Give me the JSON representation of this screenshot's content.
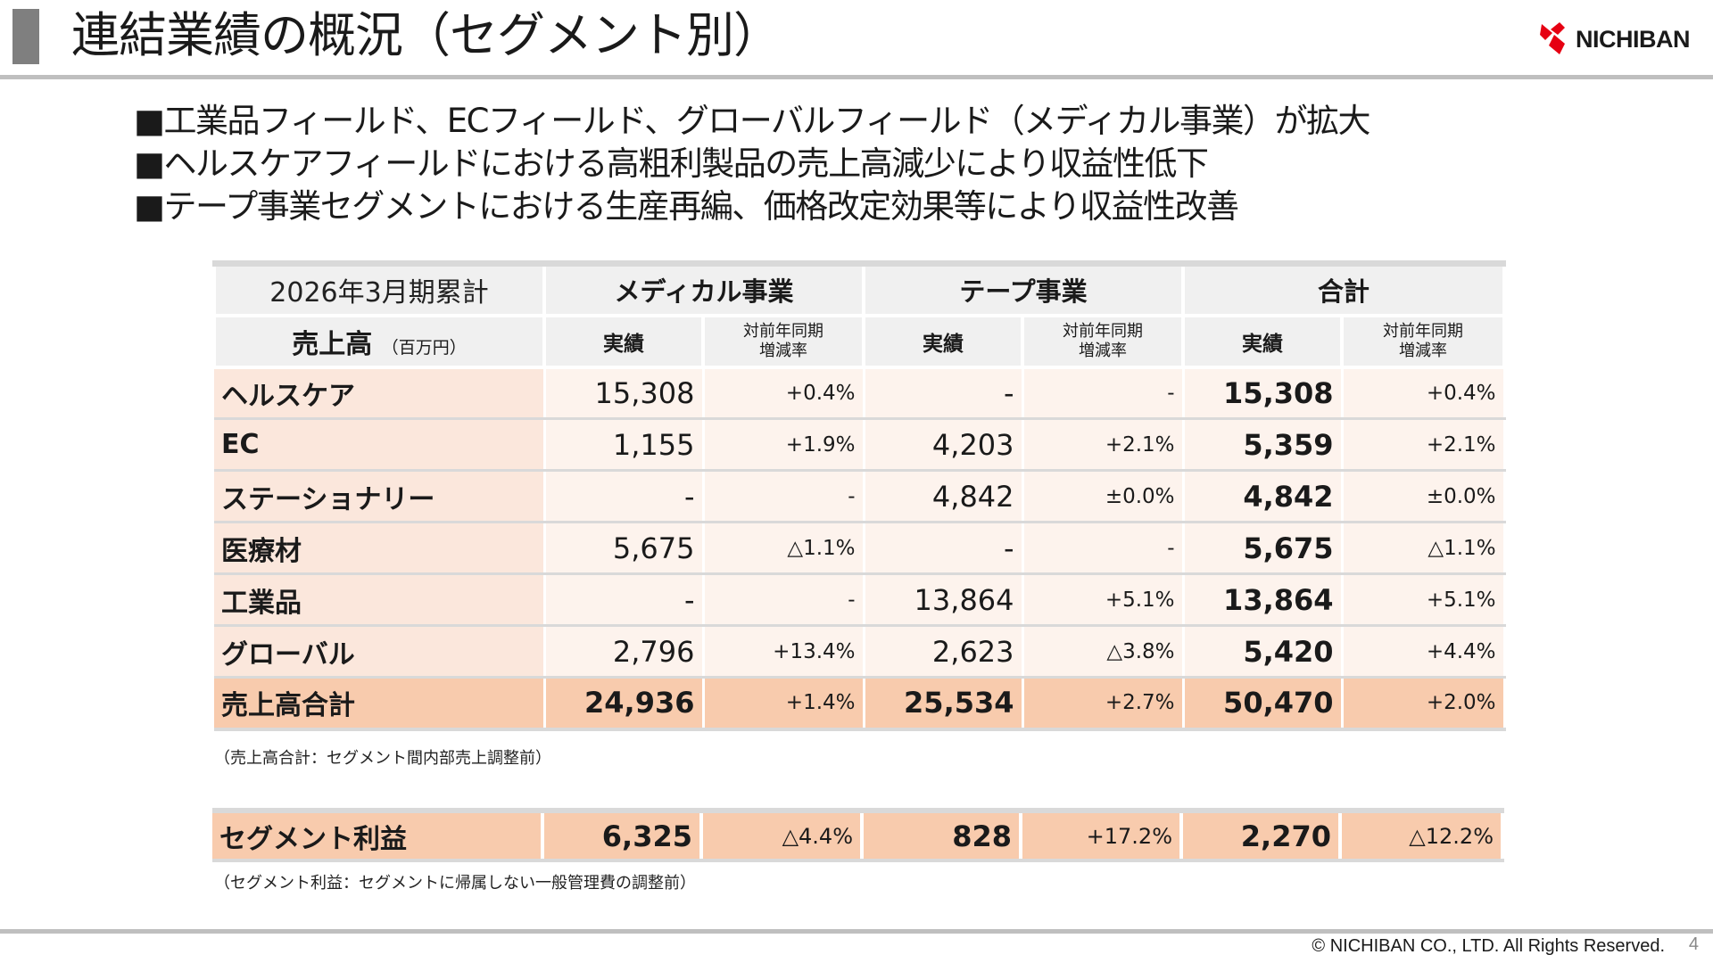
{
  "header": {
    "title": "連結業績の概況（セグメント別）",
    "logo_text": "NICHIBAN",
    "logo_color": "#e60012"
  },
  "bullets": [
    "■工業品フィールド、ECフィールド、グローバルフィールド（メディカル事業）が拡大",
    "■ヘルスケアフィールドにおける高粗利製品の売上高減少により収益性低下",
    "■テープ事業セグメントにおける生産再編、価格改定効果等により収益性改善"
  ],
  "table": {
    "period": "2026年3月期累計",
    "sales_label": "売上高",
    "sales_unit": "（百万円）",
    "segments": [
      "メディカル事業",
      "テープ事業",
      "合計"
    ],
    "sub_actual": "実績",
    "sub_yoy": "対前年同期 増減率",
    "rows": [
      {
        "label": "ヘルスケア",
        "med": "15,308",
        "med_rate": "+0.4%",
        "tape": "-",
        "tape_rate": "-",
        "total": "15,308",
        "total_rate": "+0.4%"
      },
      {
        "label": "EC",
        "med": "1,155",
        "med_rate": "+1.9%",
        "tape": "4,203",
        "tape_rate": "+2.1%",
        "total": "5,359",
        "total_rate": "+2.1%"
      },
      {
        "label": "ステーショナリー",
        "med": "-",
        "med_rate": "-",
        "tape": "4,842",
        "tape_rate": "±0.0%",
        "total": "4,842",
        "total_rate": "±0.0%"
      },
      {
        "label": "医療材",
        "med": "5,675",
        "med_rate": "△1.1%",
        "tape": "-",
        "tape_rate": "-",
        "total": "5,675",
        "total_rate": "△1.1%"
      },
      {
        "label": "工業品",
        "med": "-",
        "med_rate": "-",
        "tape": "13,864",
        "tape_rate": "+5.1%",
        "total": "13,864",
        "total_rate": "+5.1%"
      },
      {
        "label": "グローバル",
        "med": "2,796",
        "med_rate": "+13.4%",
        "tape": "2,623",
        "tape_rate": "△3.8%",
        "total": "5,420",
        "total_rate": "+4.4%"
      }
    ],
    "total_row": {
      "label": "売上高合計",
      "med": "24,936",
      "med_rate": "+1.4%",
      "tape": "25,534",
      "tape_rate": "+2.7%",
      "total": "50,470",
      "total_rate": "+2.0%"
    },
    "note": "（売上高合計：セグメント間内部売上調整前）"
  },
  "profit": {
    "label": "セグメント利益",
    "med": "6,325",
    "med_rate": "△4.4%",
    "tape": "828",
    "tape_rate": "+17.2%",
    "total": "2,270",
    "total_rate": "△12.2%",
    "note": "（セグメント利益：セグメントに帰属しない一般管理費の調整前）"
  },
  "footer": {
    "copyright": "© NICHIBAN CO., LTD. All Rights Reserved.",
    "page": "4"
  }
}
